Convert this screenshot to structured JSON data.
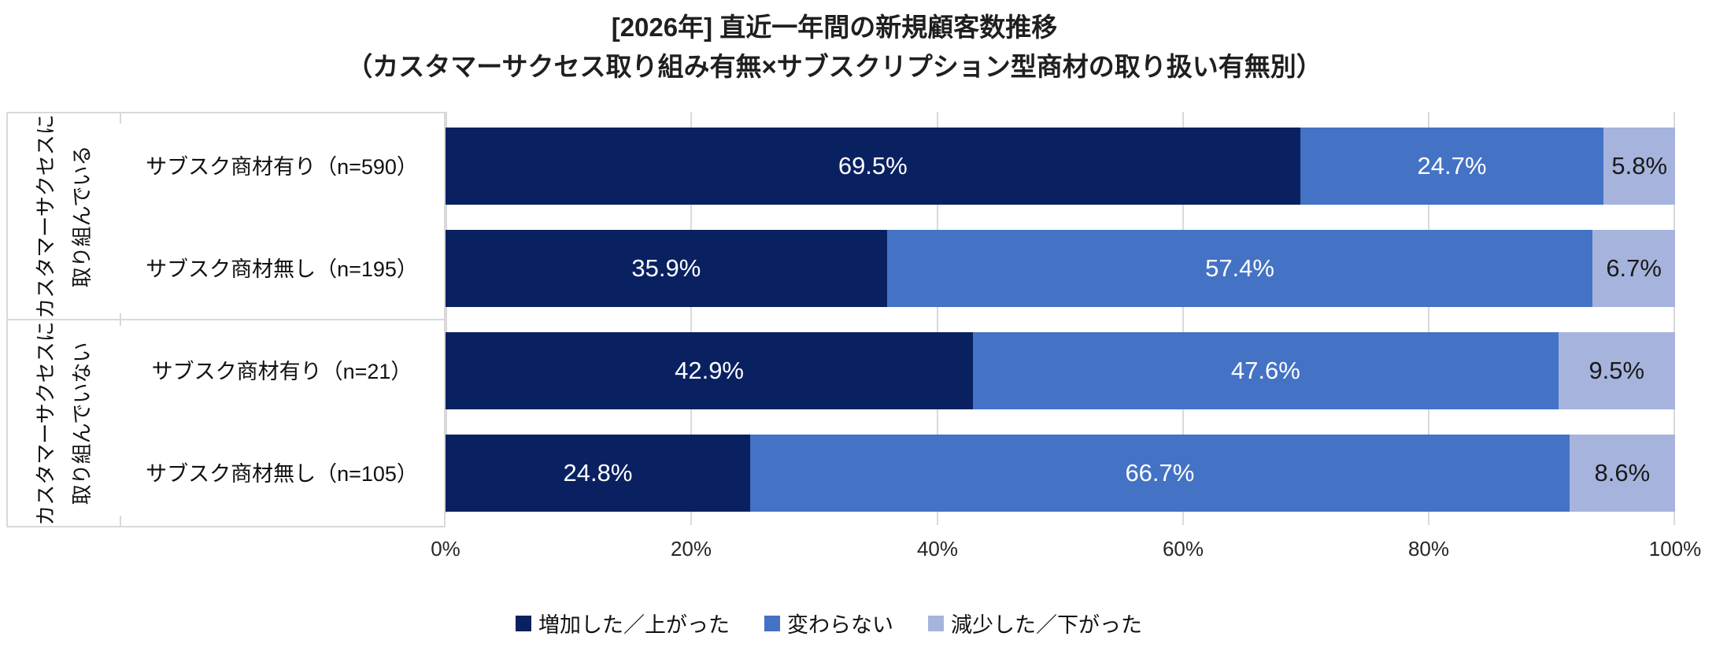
{
  "title": {
    "line1": "[2026年] 直近一年間の新規顧客数推移",
    "line2": "（カスタマーサクセス取り組み有無×サブスクリプション型商材の取り扱い有無別）"
  },
  "colors": {
    "increase": "#0A2161",
    "unchanged": "#4472C4",
    "decrease": "#A6B4DD",
    "grid": "#D9D9D9"
  },
  "groups": [
    {
      "line1": "カスタマーサクセスに",
      "line2": "取り組んでいる"
    },
    {
      "line1": "カスタマーサクセスに",
      "line2": "取り組んでいない"
    }
  ],
  "rows": [
    {
      "label": "サブスク商材有り（n=590）",
      "values": [
        69.5,
        24.7,
        5.8
      ],
      "labels": [
        "69.5%",
        "24.7%",
        "5.8%"
      ]
    },
    {
      "label": "サブスク商材無し（n=195）",
      "values": [
        35.9,
        57.4,
        6.7
      ],
      "labels": [
        "35.9%",
        "57.4%",
        "6.7%"
      ]
    },
    {
      "label": "サブスク商材有り（n=21）",
      "values": [
        42.9,
        47.6,
        9.5
      ],
      "labels": [
        "42.9%",
        "47.6%",
        "9.5%"
      ]
    },
    {
      "label": "サブスク商材無し（n=105）",
      "values": [
        24.8,
        66.7,
        8.6
      ],
      "labels": [
        "24.8%",
        "66.7%",
        "8.6%"
      ]
    }
  ],
  "axis": {
    "ticks": [
      "0%",
      "20%",
      "40%",
      "60%",
      "80%",
      "100%"
    ]
  },
  "legend": {
    "items": [
      {
        "label": "増加した／上がった",
        "color": "#0A2161"
      },
      {
        "label": "変わらない",
        "color": "#4472C4"
      },
      {
        "label": "減少した／下がった",
        "color": "#A6B4DD"
      }
    ]
  },
  "chart_data": {
    "type": "bar",
    "orientation": "horizontal",
    "stacked": true,
    "title": "[2026年] 直近一年間の新規顧客数推移",
    "subtitle": "（カスタマーサクセス取り組み有無×サブスクリプション型商材の取り扱い有無別）",
    "group_labels": [
      "カスタマーサクセスに取り組んでいる",
      "カスタマーサクセスに取り組んでいない"
    ],
    "categories": [
      "サブスク商材有り（n=590）",
      "サブスク商材無し（n=195）",
      "サブスク商材有り（n=21）",
      "サブスク商材無し（n=105）"
    ],
    "series": [
      {
        "name": "増加した／上がった",
        "color": "#0A2161",
        "values": [
          69.5,
          35.9,
          42.9,
          24.8
        ]
      },
      {
        "name": "変わらない",
        "color": "#4472C4",
        "values": [
          24.7,
          57.4,
          47.6,
          66.7
        ]
      },
      {
        "name": "減少した／下がった",
        "color": "#A6B4DD",
        "values": [
          5.8,
          6.7,
          9.5,
          8.6
        ]
      }
    ],
    "xlim": [
      0,
      100
    ],
    "x_ticks": [
      "0%",
      "20%",
      "40%",
      "60%",
      "80%",
      "100%"
    ],
    "grid": true,
    "legend_position": "bottom",
    "data_labels": "percent, shown inside segments"
  }
}
